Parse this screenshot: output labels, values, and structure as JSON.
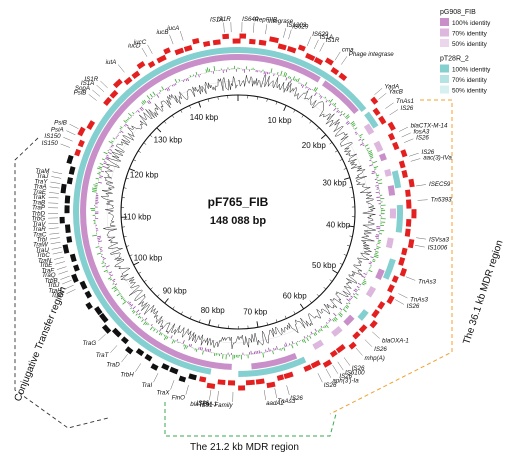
{
  "plasmid": {
    "name": "pF765_FIB",
    "size": "148 088 bp"
  },
  "kbp_ticks": [
    "10 kbp",
    "20 kbp",
    "30 kbp",
    "40 kbp",
    "50 kbp",
    "60 kbp",
    "70 kbp",
    "80 kbp",
    "90 kbp",
    "100 kbp",
    "110 kbp",
    "120 kbp",
    "130 kbp",
    "140 kbp"
  ],
  "legend": {
    "groups": [
      {
        "title": "pG908_FIB",
        "items": [
          {
            "label": "100% identity",
            "color": "#c98fc9"
          },
          {
            "label": "70% identity",
            "color": "#ddb7dd"
          },
          {
            "label": "50% identity",
            "color": "#ecd6ec"
          }
        ]
      },
      {
        "title": "pT28R_2",
        "items": [
          {
            "label": "100% identity",
            "color": "#84cfcf"
          },
          {
            "label": "70% identity",
            "color": "#b5e2e2"
          },
          {
            "label": "50% identity",
            "color": "#d6efef"
          }
        ]
      }
    ]
  },
  "regions": {
    "conjugative": "Conjugative Transfer region",
    "mdr36": "The 36.1 kb MDR region",
    "mdr21": "The 21.2 kb MDR region"
  },
  "colors": {
    "cds_red": "#e3201f",
    "tra_black": "#111111",
    "ring_purple": "#c98fc9",
    "ring_teal": "#84cfcf",
    "gc_green": "#3aaa35",
    "skew_purple": "#9b4fa8",
    "conj_line": "#333333",
    "mdr36_line": "#f0a030",
    "mdr21_line": "#3aaa50"
  },
  "gene_labels": [
    {
      "text": "IS1R",
      "kb": 147.2
    },
    {
      "text": "IS1A",
      "kb": 146.3
    },
    {
      "text": "IS640",
      "kb": 0.5
    },
    {
      "text": "RepFIIB",
      "kb": 2.0
    },
    {
      "text": "Integrase",
      "kb": 3.6
    },
    {
      "text": "IS1203",
      "kb": 6.0
    },
    {
      "text": "IS629",
      "kb": 6.7
    },
    {
      "text": "IS629",
      "kb": 9.3
    },
    {
      "text": "IS1A",
      "kb": 10.3
    },
    {
      "text": "IS1R",
      "kb": 11.1
    },
    {
      "text": "cma",
      "kb": 13.4
    },
    {
      "text": "Phage integrase",
      "kb": 14.4
    },
    {
      "text": "YadA",
      "kb": 20.3
    },
    {
      "text": "YacB",
      "kb": 21.1
    },
    {
      "text": "TnAs1",
      "kb": 22.6
    },
    {
      "text": "IS26",
      "kb": 23.6
    },
    {
      "text": "blaCTX-M-14",
      "kb": 26.1
    },
    {
      "text": "fosA3",
      "kb": 26.9
    },
    {
      "text": "IS26",
      "kb": 27.7
    },
    {
      "text": "IS26",
      "kb": 29.6
    },
    {
      "text": "aac(3)-IVa",
      "kb": 30.3
    },
    {
      "text": "ISEC59",
      "kb": 33.6
    },
    {
      "text": "Tn5393",
      "kb": 35.5
    },
    {
      "text": "ISVsa3",
      "kb": 40.4
    },
    {
      "text": "IS1006",
      "kb": 41.4
    },
    {
      "text": "TnAs3",
      "kb": 45.7
    },
    {
      "text": "TnAs3",
      "kb": 48.1
    },
    {
      "text": "IS26",
      "kb": 49.0
    },
    {
      "text": "blaOXA-1",
      "kb": 54.2
    },
    {
      "text": "IS26",
      "kb": 55.6
    },
    {
      "text": "mhp(A)",
      "kb": 57.2
    },
    {
      "text": "IS26",
      "kb": 59.2
    },
    {
      "text": "IS6100",
      "kb": 60.2
    },
    {
      "text": "IS26",
      "kb": 61.0
    },
    {
      "text": "aph(3')-Ia",
      "kb": 62.0
    },
    {
      "text": "IS26",
      "kb": 63.2
    },
    {
      "text": "IS26",
      "kb": 67.6
    },
    {
      "text": "TnAs3",
      "kb": 69.2
    },
    {
      "text": "aadA2",
      "kb": 70.6
    },
    {
      "text": "IS91 Family",
      "kb": 74.7
    },
    {
      "text": "blaTEM-1",
      "kb": 76.6
    },
    {
      "text": "IS26",
      "kb": 77.6
    },
    {
      "text": "FinO",
      "kb": 80.6
    },
    {
      "text": "TraX",
      "kb": 82.6
    },
    {
      "text": "TraI",
      "kb": 84.9
    },
    {
      "text": "TrbH",
      "kb": 87.5
    },
    {
      "text": "TraD",
      "kb": 89.6
    },
    {
      "text": "TraT",
      "kb": 91.4
    },
    {
      "text": "TraG",
      "kb": 93.5
    },
    {
      "text": "TrbF",
      "kb": 100.6
    },
    {
      "text": "TraH",
      "kb": 101.2
    },
    {
      "text": "TrbJ",
      "kb": 101.9
    },
    {
      "text": "TrbB",
      "kb": 102.5
    },
    {
      "text": "TraQ",
      "kb": 103.2
    },
    {
      "text": "TraF",
      "kb": 103.8
    },
    {
      "text": "TrbE",
      "kb": 104.5
    },
    {
      "text": "TraN",
      "kb": 105.1
    },
    {
      "text": "TrbC",
      "kb": 105.8
    },
    {
      "text": "TraU",
      "kb": 106.4
    },
    {
      "text": "TraW",
      "kb": 107.1
    },
    {
      "text": "TrbI",
      "kb": 107.7
    },
    {
      "text": "TraC",
      "kb": 108.3
    },
    {
      "text": "TraR",
      "kb": 109.0
    },
    {
      "text": "TraV",
      "kb": 109.6
    },
    {
      "text": "TrbG",
      "kb": 110.3
    },
    {
      "text": "TrbD",
      "kb": 110.9
    },
    {
      "text": "TraP",
      "kb": 111.6
    },
    {
      "text": "TraB",
      "kb": 112.2
    },
    {
      "text": "TraK",
      "kb": 112.9
    },
    {
      "text": "TraE",
      "kb": 113.5
    },
    {
      "text": "TraA",
      "kb": 114.2
    },
    {
      "text": "TraY",
      "kb": 114.8
    },
    {
      "text": "TraJ",
      "kb": 115.5
    },
    {
      "text": "TraM",
      "kb": 116.1
    },
    {
      "text": "IS150",
      "kb": 119.7
    },
    {
      "text": "IS150",
      "kb": 120.6
    },
    {
      "text": "PsiA",
      "kb": 121.5
    },
    {
      "text": "PsiB",
      "kb": 122.4
    },
    {
      "text": "PsiB",
      "kb": 126.8
    },
    {
      "text": "SopA",
      "kb": 127.5
    },
    {
      "text": "IS1A",
      "kb": 128.3
    },
    {
      "text": "IS1R",
      "kb": 129.0
    },
    {
      "text": "iutA",
      "kb": 132.0
    },
    {
      "text": "iucD",
      "kb": 135.6
    },
    {
      "text": "iucC",
      "kb": 136.4
    },
    {
      "text": "iucB",
      "kb": 139.4
    },
    {
      "text": "iucA",
      "kb": 140.8
    }
  ]
}
